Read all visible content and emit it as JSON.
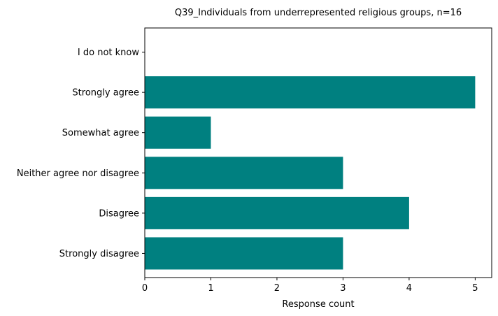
{
  "chart_data": {
    "type": "bar",
    "orientation": "horizontal",
    "title": "Q39_Individuals from underrepresented religious groups, n=16",
    "xlabel": "Response count",
    "ylabel": "",
    "categories": [
      "Strongly disagree",
      "Disagree",
      "Neither agree nor disagree",
      "Somewhat agree",
      "Strongly agree",
      "I do not know"
    ],
    "values": [
      3,
      4,
      3,
      1,
      5,
      0
    ],
    "xlim": [
      0,
      5.25
    ],
    "xticks": [
      0,
      1,
      2,
      3,
      4,
      5
    ],
    "grid": false,
    "bar_color": "#008080"
  }
}
